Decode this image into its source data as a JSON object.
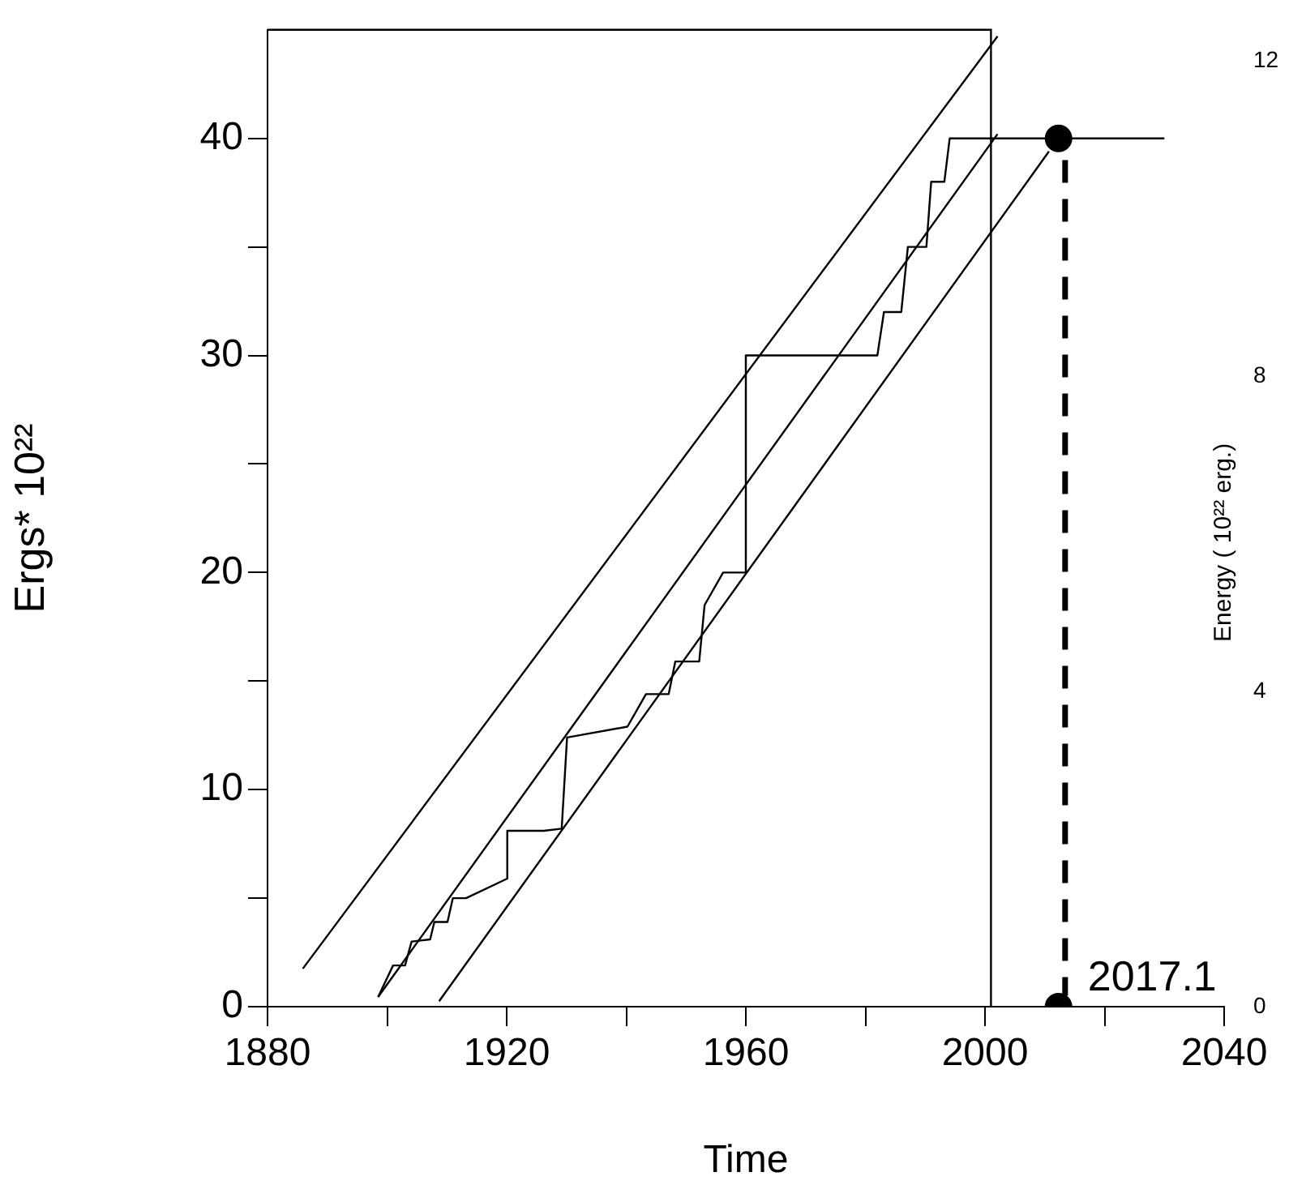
{
  "chart_data": {
    "type": "line",
    "xlabel": "Time",
    "ylabel": "Ergs* 10²²",
    "y2label": "Energy ( 10²² erg.)",
    "xlim": [
      1880,
      2040
    ],
    "xticks": [
      1880,
      {
        "value": 1900,
        "label": null
      },
      1920,
      {
        "value": 1940,
        "label": null
      },
      1960,
      {
        "value": 1980,
        "label": null
      },
      2000,
      {
        "value": 2020,
        "label": null
      },
      2040
    ],
    "ylim": [
      0,
      45
    ],
    "yticks": [
      0,
      {
        "value": 5,
        "label": null
      },
      10,
      {
        "value": 15,
        "label": null
      },
      20,
      {
        "value": 25,
        "label": null
      },
      30,
      {
        "value": 35,
        "label": null
      },
      40
    ],
    "y2lim": [
      0,
      12.4
    ],
    "y2ticks": [
      0,
      4,
      8,
      12
    ],
    "grid": false,
    "legend": false,
    "ref_lines": [
      {
        "axis": "x",
        "value": 2001,
        "color": "#000000"
      }
    ],
    "annotations": [
      {
        "text": "2017.1",
        "x": 2012.3,
        "y": 0
      }
    ],
    "series": [
      {
        "color": "#000000",
        "marker": "none",
        "x": [
          1898.5,
          1901.0,
          1903.0,
          1904.1,
          1907.2,
          1907.9,
          1910.1,
          1911.0,
          1913.2,
          1920.1,
          1920.1,
          1926.2,
          1929.2,
          1930.1,
          1940.2,
          1943.3,
          1947.1,
          1948.2,
          1952.2,
          1953.1,
          1956.2,
          1960.0,
          1960.0,
          1982.0,
          1983.1,
          1986.0,
          1987.1,
          1990.2,
          1991.0,
          1993.2,
          1994.1,
          2030
        ],
        "values": [
          0.45,
          1.9,
          1.9,
          3.0,
          3.1,
          3.9,
          3.9,
          5.0,
          5.0,
          5.9,
          8.1,
          8.1,
          8.2,
          12.4,
          12.9,
          14.4,
          14.4,
          15.9,
          15.9,
          18.5,
          20.0,
          20.0,
          30.0,
          30.0,
          32.0,
          32.0,
          35.0,
          35.0,
          38.0,
          38.0,
          40.0,
          40.0
        ]
      },
      {
        "color": "#000000",
        "marker": "none",
        "x": [
          1885.9,
          2002.1
        ],
        "values": [
          1.75,
          44.7
        ]
      },
      {
        "color": "#000000",
        "marker": "none",
        "x": [
          1898.5,
          2002.1
        ],
        "values": [
          0.45,
          40.2
        ]
      },
      {
        "color": "#000000",
        "marker": "none",
        "x": [
          1908.7,
          2010.7
        ],
        "values": [
          0.25,
          39.4
        ]
      },
      {
        "color": "#000000",
        "marker": "none",
        "line_style": "dashed",
        "x": [
          2013.4,
          2013.4
        ],
        "values": [
          39,
          0.5
        ]
      },
      {
        "type": "scatter",
        "color": "#000000",
        "marker": "circle",
        "x": [
          2012.3,
          2012.3
        ],
        "values": [
          40,
          0
        ]
      }
    ]
  }
}
